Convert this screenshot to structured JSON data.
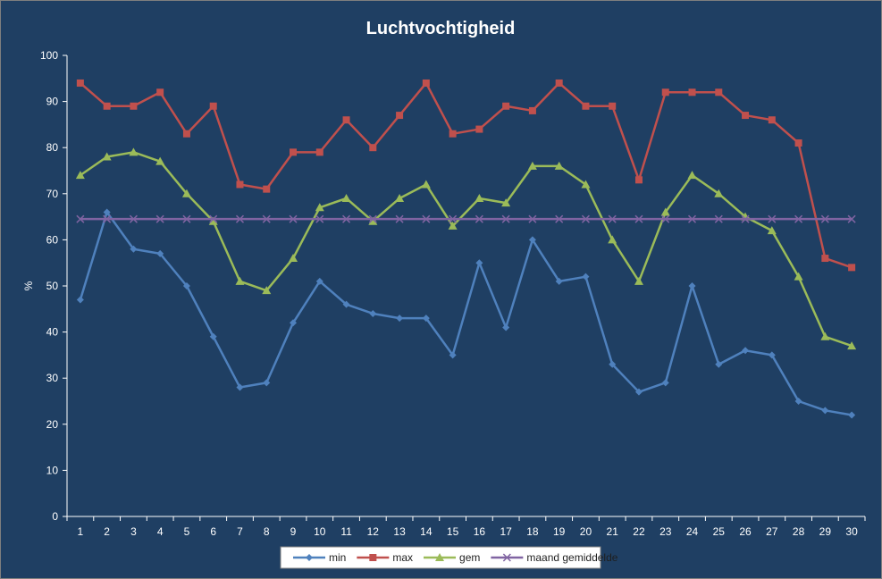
{
  "chart_data": {
    "type": "line",
    "title": "Luchtvochtigheid",
    "xlabel": "",
    "ylabel": "%",
    "ylim": [
      0,
      100
    ],
    "yticks": [
      0,
      10,
      20,
      30,
      40,
      50,
      60,
      70,
      80,
      90,
      100
    ],
    "categories": [
      "1",
      "2",
      "3",
      "4",
      "5",
      "6",
      "7",
      "8",
      "9",
      "10",
      "11",
      "12",
      "13",
      "14",
      "15",
      "16",
      "17",
      "18",
      "19",
      "20",
      "21",
      "22",
      "23",
      "24",
      "25",
      "26",
      "27",
      "28",
      "29",
      "30"
    ],
    "grid": false,
    "legend_position": "bottom",
    "series": [
      {
        "name": "min",
        "color": "#4f81bd",
        "marker": "diamond",
        "values": [
          47,
          66,
          58,
          57,
          50,
          39,
          28,
          29,
          42,
          51,
          46,
          44,
          43,
          43,
          35,
          55,
          41,
          60,
          51,
          52,
          33,
          27,
          29,
          50,
          33,
          36,
          35,
          25,
          23,
          22
        ]
      },
      {
        "name": "max",
        "color": "#c0504d",
        "marker": "square",
        "values": [
          94,
          89,
          89,
          92,
          83,
          89,
          72,
          71,
          79,
          79,
          86,
          80,
          87,
          94,
          83,
          84,
          89,
          88,
          94,
          89,
          89,
          73,
          92,
          92,
          92,
          87,
          86,
          81,
          56,
          54
        ]
      },
      {
        "name": "gem",
        "color": "#9bbb59",
        "marker": "triangle",
        "values": [
          74,
          78,
          79,
          77,
          70,
          64,
          51,
          49,
          56,
          67,
          69,
          64,
          69,
          72,
          63,
          69,
          68,
          76,
          76,
          72,
          60,
          51,
          66,
          74,
          70,
          65,
          62,
          52,
          39,
          37
        ]
      },
      {
        "name": "maand gemiddelde",
        "color": "#8064a2",
        "marker": "x",
        "values": [
          64.5,
          64.5,
          64.5,
          64.5,
          64.5,
          64.5,
          64.5,
          64.5,
          64.5,
          64.5,
          64.5,
          64.5,
          64.5,
          64.5,
          64.5,
          64.5,
          64.5,
          64.5,
          64.5,
          64.5,
          64.5,
          64.5,
          64.5,
          64.5,
          64.5,
          64.5,
          64.5,
          64.5,
          64.5,
          64.5
        ]
      }
    ]
  }
}
